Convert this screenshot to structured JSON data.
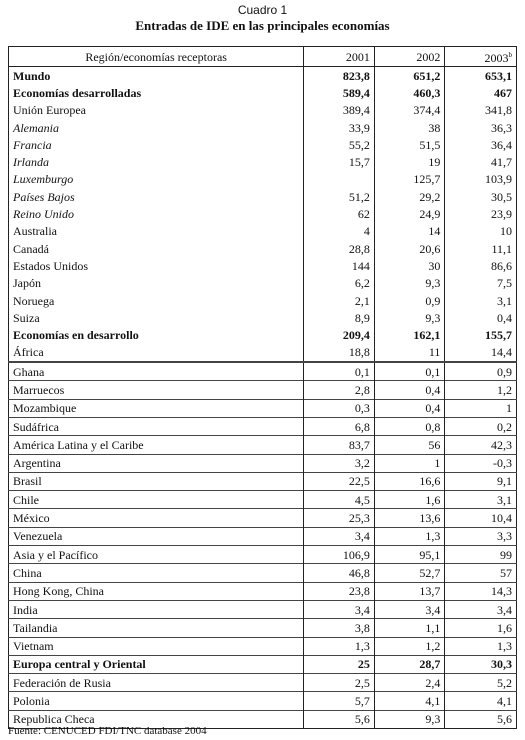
{
  "header": {
    "label": "Cuadro 1",
    "title": "Entradas de IDE en las principales economías"
  },
  "table": {
    "columns": [
      "Región/economías receptoras",
      "2001",
      "2002",
      "2003"
    ],
    "column_note": "b",
    "rows": [
      {
        "cells": [
          "Mundo",
          "823,8",
          "651,2",
          "653,1"
        ],
        "style": "bold"
      },
      {
        "cells": [
          "Economías desarrolladas",
          "589,4",
          "460,3",
          "467"
        ],
        "style": "bold"
      },
      {
        "cells": [
          "Unión Europea",
          "389,4",
          "374,4",
          "341,8"
        ]
      },
      {
        "cells": [
          "Alemania",
          "33,9",
          "38",
          "36,3"
        ],
        "style": "italic"
      },
      {
        "cells": [
          "Francia",
          "55,2",
          "51,5",
          "36,4"
        ],
        "style": "italic"
      },
      {
        "cells": [
          "Irlanda",
          "15,7",
          "19",
          "41,7"
        ],
        "style": "italic"
      },
      {
        "cells": [
          "Luxemburgo",
          null,
          "125,7",
          "103,9"
        ],
        "style": "italic"
      },
      {
        "cells": [
          "Países Bajos",
          "51,2",
          "29,2",
          "30,5"
        ],
        "style": "italic"
      },
      {
        "cells": [
          "Reino Unido",
          "62",
          "24,9",
          "23,9"
        ],
        "style": "italic"
      },
      {
        "cells": [
          "Australia",
          "4",
          "14",
          "10"
        ]
      },
      {
        "cells": [
          "Canadá",
          "28,8",
          "20,6",
          "11,1"
        ]
      },
      {
        "cells": [
          "Estados Unidos",
          "144",
          "30",
          "86,6"
        ]
      },
      {
        "cells": [
          "Japón",
          "6,2",
          "9,3",
          "7,5"
        ]
      },
      {
        "cells": [
          "Noruega",
          "2,1",
          "0,9",
          "3,1"
        ]
      },
      {
        "cells": [
          "Suiza",
          "8,9",
          "9,3",
          "0,4"
        ]
      },
      {
        "cells": [
          "Economías en desarrollo",
          "209,4",
          "162,1",
          "155,7"
        ],
        "style": "bold"
      },
      {
        "cells": [
          "África",
          "18,8",
          "11",
          "14,4"
        ]
      },
      {
        "cells": [
          "Ghana",
          "0,1",
          "0,1",
          "0,9"
        ]
      },
      {
        "cells": [
          "Marruecos",
          "2,8",
          "0,4",
          "1,2"
        ]
      },
      {
        "cells": [
          "Mozambique",
          "0,3",
          "0,4",
          "1"
        ]
      },
      {
        "cells": [
          "Sudáfrica",
          "6,8",
          "0,8",
          "0,2"
        ]
      },
      {
        "cells": [
          "América Latina y el Caribe",
          "83,7",
          "56",
          "42,3"
        ]
      },
      {
        "cells": [
          "Argentina",
          "3,2",
          "1",
          "-0,3"
        ]
      },
      {
        "cells": [
          "Brasil",
          "22,5",
          "16,6",
          "9,1"
        ]
      },
      {
        "cells": [
          "Chile",
          "4,5",
          "1,6",
          "3,1"
        ]
      },
      {
        "cells": [
          "México",
          "25,3",
          "13,6",
          "10,4"
        ]
      },
      {
        "cells": [
          "Venezuela",
          "3,4",
          "1,3",
          "3,3"
        ]
      },
      {
        "cells": [
          "Asia y el Pacífico",
          "106,9",
          "95,1",
          "99"
        ]
      },
      {
        "cells": [
          "China",
          "46,8",
          "52,7",
          "57"
        ]
      },
      {
        "cells": [
          "Hong Kong, China",
          "23,8",
          "13,7",
          "14,3"
        ]
      },
      {
        "cells": [
          "India",
          "3,4",
          "3,4",
          "3,4"
        ]
      },
      {
        "cells": [
          "Tailandia",
          "3,8",
          "1,1",
          "1,6"
        ]
      },
      {
        "cells": [
          "Vietnam",
          "1,3",
          "1,2",
          "1,3"
        ]
      },
      {
        "cells": [
          "Europa central y Oriental",
          "25",
          "28,7",
          "30,3"
        ],
        "style": "bold"
      },
      {
        "cells": [
          "Federación de Rusia",
          "2,5",
          "2,4",
          "5,2"
        ]
      },
      {
        "cells": [
          "Polonia",
          "5,7",
          "4,1",
          "4,1"
        ]
      },
      {
        "cells": [
          "Republica Checa",
          "5,6",
          "9,3",
          "5,6"
        ]
      }
    ]
  },
  "footer": "Fuente: CENUCED FDI/TNC database 2004"
}
